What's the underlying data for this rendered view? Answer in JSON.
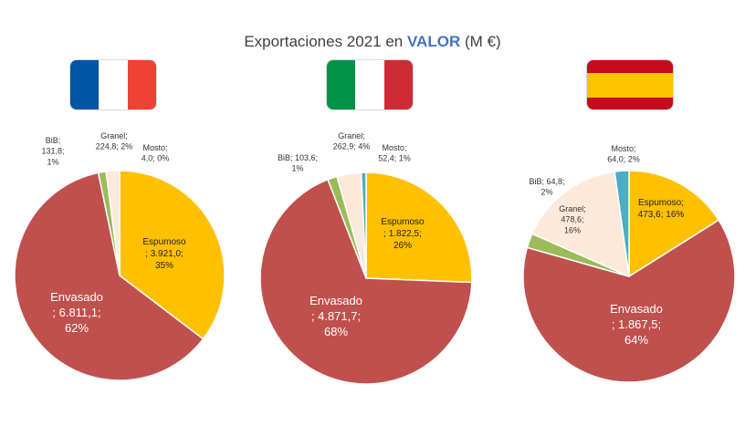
{
  "title": {
    "prefix": "Exportaciones 2021 en",
    "highlight": "VALOR",
    "suffix": "(M €)"
  },
  "colors": {
    "Espumoso": "#ffc000",
    "Envasado": "#c0504d",
    "BiB": "#9bbb59",
    "Granel": "#fde9d9",
    "Mosto": "#4bacc6",
    "highlight": "#4472c4"
  },
  "flags": [
    {
      "country": "France",
      "orientation": "vertical",
      "bands": [
        "#0055a4",
        "#ffffff",
        "#ef4135"
      ]
    },
    {
      "country": "Italy",
      "orientation": "vertical",
      "bands": [
        "#009246",
        "#ffffff",
        "#ce2b37"
      ]
    },
    {
      "country": "Spain",
      "orientation": "horizontal",
      "bands": [
        "#c60b1e",
        "#ffc400",
        "#ffc400",
        "#c60b1e"
      ]
    }
  ],
  "chart_data": [
    {
      "type": "pie",
      "country": "France",
      "title": "",
      "series": [
        {
          "category": "Espumoso",
          "value": 3921.0,
          "percent": 35,
          "label_lines": [
            "Espumoso",
            "; 3.921,0;",
            "35%"
          ]
        },
        {
          "category": "Envasado",
          "value": 6811.1,
          "percent": 62,
          "label_lines": [
            "Envasado",
            "; 6.811,1;",
            "62%"
          ]
        },
        {
          "category": "BiB",
          "value": 131.8,
          "percent": 1,
          "label_lines": [
            "BiB;",
            "131,8;",
            "1%"
          ]
        },
        {
          "category": "Granel",
          "value": 224.8,
          "percent": 2,
          "label_lines": [
            "Granel;",
            "224,8; 2%"
          ]
        },
        {
          "category": "Mosto",
          "value": 4.0,
          "percent": 0,
          "label_lines": [
            "Mosto;",
            "4,0; 0%"
          ]
        }
      ]
    },
    {
      "type": "pie",
      "country": "Italy",
      "title": "",
      "series": [
        {
          "category": "Espumoso",
          "value": 1822.5,
          "percent": 26,
          "label_lines": [
            "Espumoso",
            "; 1.822,5;",
            "26%"
          ]
        },
        {
          "category": "Envasado",
          "value": 4871.7,
          "percent": 68,
          "label_lines": [
            "Envasado",
            "; 4.871,7;",
            "68%"
          ]
        },
        {
          "category": "BiB",
          "value": 103.6,
          "percent": 1,
          "label_lines": [
            "BiB; 103,6;",
            "1%"
          ]
        },
        {
          "category": "Granel",
          "value": 262.9,
          "percent": 4,
          "label_lines": [
            "Granel;",
            "262,9; 4%"
          ]
        },
        {
          "category": "Mosto",
          "value": 52.4,
          "percent": 1,
          "label_lines": [
            "Mosto;",
            "52,4; 1%"
          ]
        }
      ]
    },
    {
      "type": "pie",
      "country": "Spain",
      "title": "",
      "series": [
        {
          "category": "Espumoso",
          "value": 473.6,
          "percent": 16,
          "label_lines": [
            "Espumoso;",
            "473,6; 16%"
          ]
        },
        {
          "category": "Envasado",
          "value": 1867.5,
          "percent": 64,
          "label_lines": [
            "Envasado",
            "; 1.867,5;",
            "64%"
          ]
        },
        {
          "category": "BiB",
          "value": 64.8,
          "percent": 2,
          "label_lines": [
            "BiB; 64,8;",
            "2%"
          ]
        },
        {
          "category": "Granel",
          "value": 478.6,
          "percent": 16,
          "label_lines": [
            "Granel;",
            "478,6;",
            "16%"
          ]
        },
        {
          "category": "Mosto",
          "value": 64.0,
          "percent": 2,
          "label_lines": [
            "Mosto;",
            "64,0; 2%"
          ]
        }
      ]
    }
  ]
}
